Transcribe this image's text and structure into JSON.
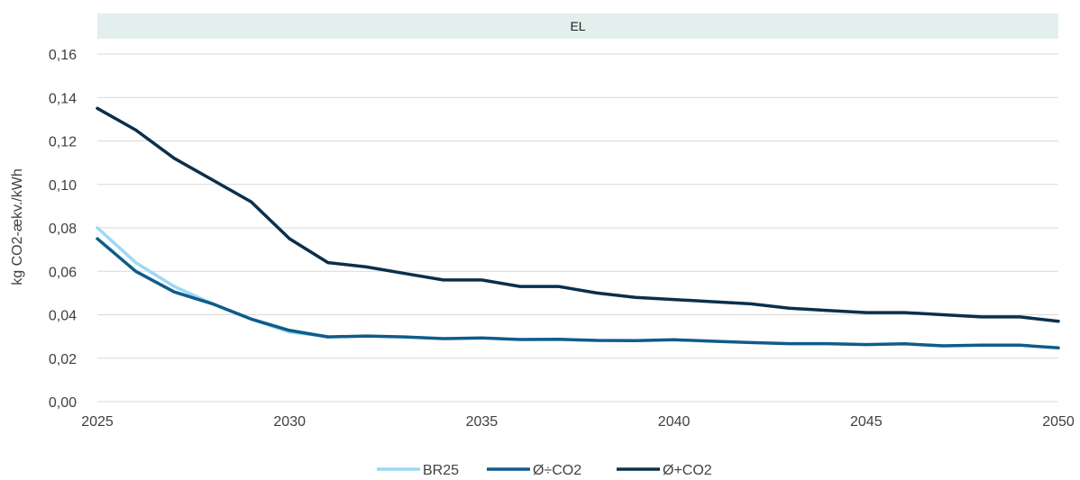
{
  "chart_data": {
    "type": "line",
    "panel_label": "EL",
    "title": "",
    "xlabel": "",
    "ylabel": "kg CO2-ækv./kWh",
    "xlim": [
      2025,
      2050
    ],
    "ylim": [
      0,
      0.16
    ],
    "x_ticks": [
      2025,
      2030,
      2035,
      2040,
      2045,
      2050
    ],
    "x_tick_labels": [
      "2025",
      "2030",
      "2035",
      "2040",
      "2045",
      "2050"
    ],
    "y_ticks": [
      0,
      0.02,
      0.04,
      0.06,
      0.08,
      0.1,
      0.12,
      0.14,
      0.16
    ],
    "y_tick_labels": [
      "0,00",
      "0,02",
      "0,04",
      "0,06",
      "0,08",
      "0,10",
      "0,12",
      "0,14",
      "0,16"
    ],
    "grid": "horizontal",
    "legend_position": "bottom",
    "panel_color": "#e3efec",
    "x": [
      2025,
      2026,
      2027,
      2028,
      2029,
      2030,
      2031,
      2032,
      2033,
      2034,
      2035,
      2036,
      2037,
      2038,
      2039,
      2040,
      2041,
      2042,
      2043,
      2044,
      2045,
      2046,
      2047,
      2048,
      2049,
      2050
    ],
    "series": [
      {
        "name": "BR25",
        "color": "#9dd9f5",
        "values": [
          0.08,
          0.064,
          0.053,
          0.045,
          0.038,
          0.032,
          0.03,
          null,
          null,
          null,
          null,
          null,
          null,
          null,
          null,
          null,
          null,
          null,
          null,
          null,
          null,
          null,
          null,
          null,
          null,
          null
        ]
      },
      {
        "name": "Ø÷CO2",
        "color": "#0e5c8a",
        "values": [
          0.075,
          0.06,
          0.0505,
          0.045,
          0.038,
          0.0328,
          0.0298,
          0.0302,
          0.0298,
          0.029,
          0.0293,
          0.0286,
          0.0287,
          0.0282,
          0.0281,
          0.0285,
          0.0278,
          0.0272,
          0.0267,
          0.0267,
          0.0263,
          0.0266,
          0.0257,
          0.026,
          0.026,
          0.0248
        ]
      },
      {
        "name": "Ø+CO2",
        "color": "#0b2f4b",
        "values": [
          0.135,
          0.125,
          0.112,
          0.102,
          0.092,
          0.075,
          0.064,
          0.062,
          0.059,
          0.056,
          0.056,
          0.053,
          0.053,
          0.05,
          0.048,
          0.047,
          0.046,
          0.045,
          0.043,
          0.042,
          0.041,
          0.041,
          0.04,
          0.039,
          0.039,
          0.037
        ]
      }
    ]
  }
}
